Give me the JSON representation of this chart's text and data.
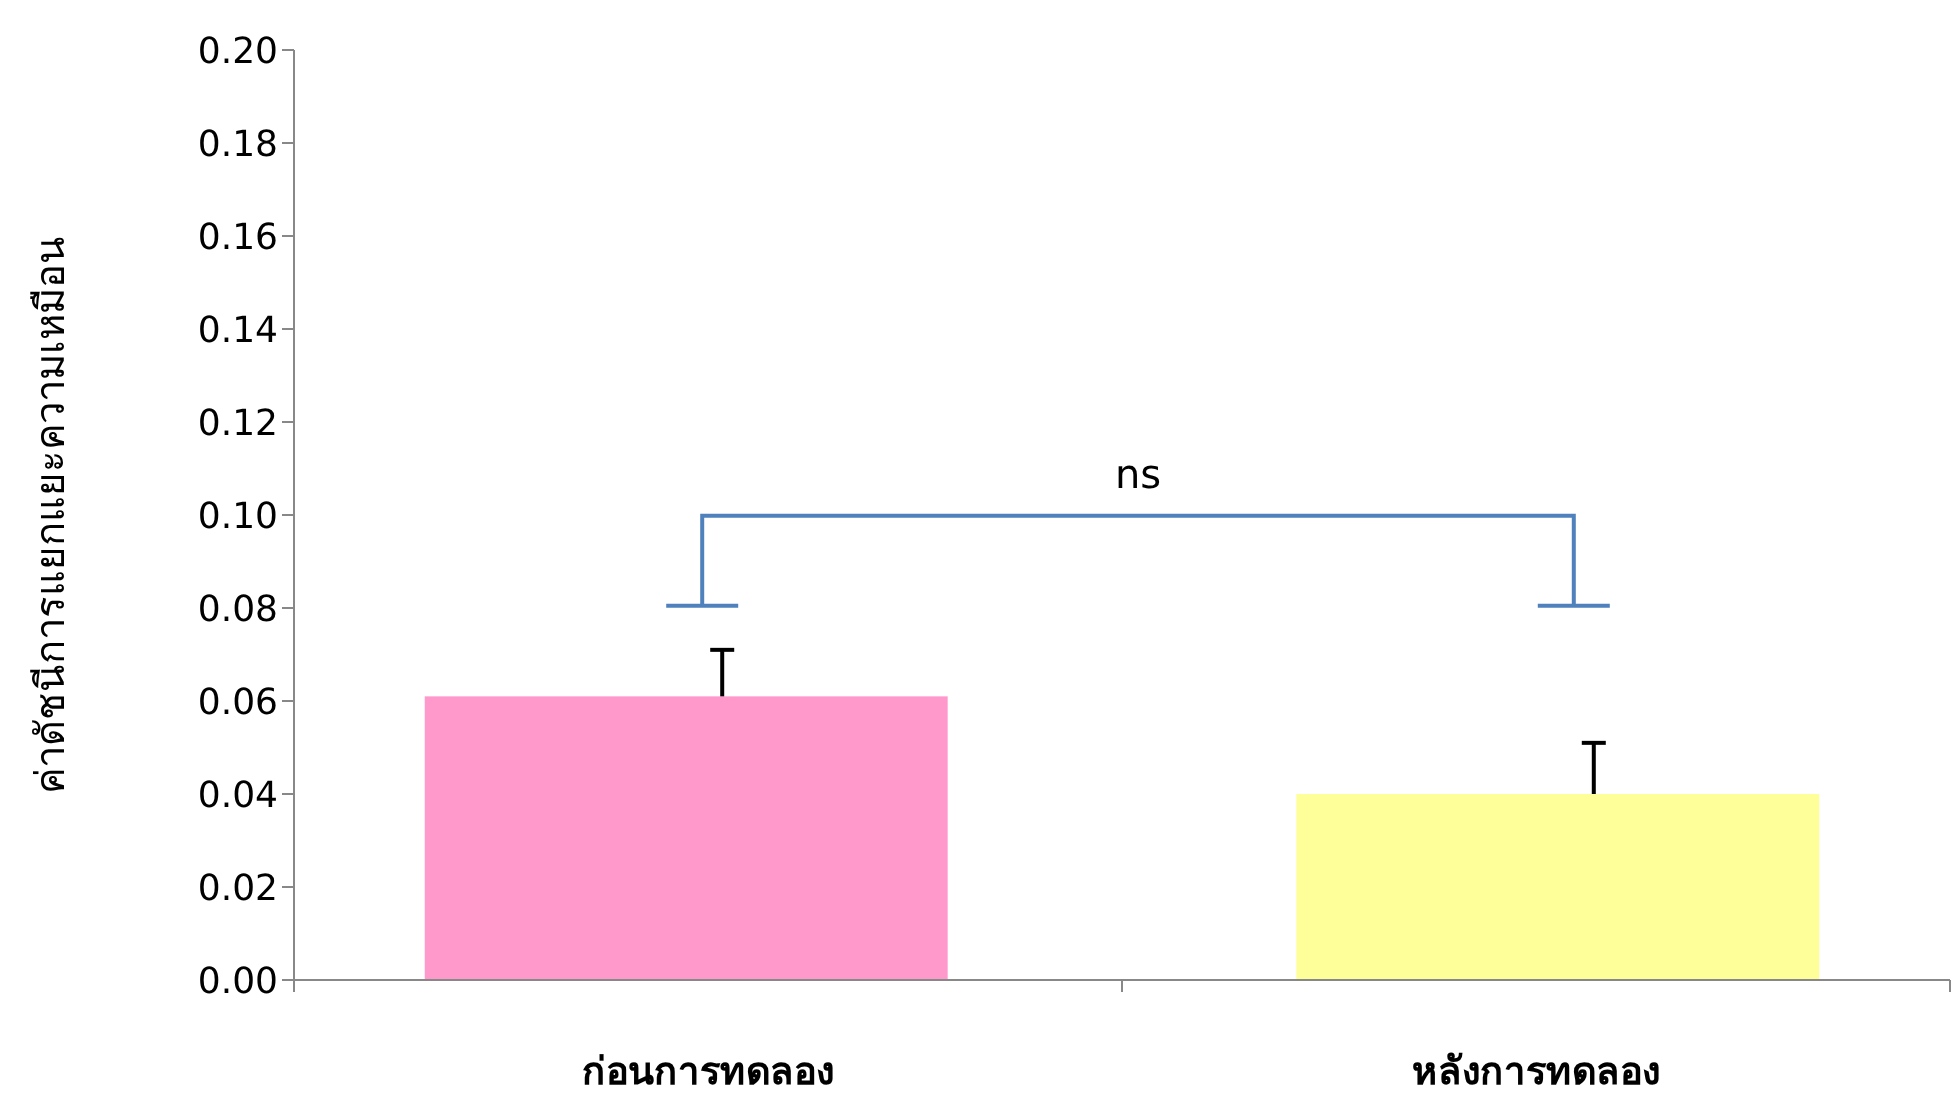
{
  "chart_data": {
    "type": "bar",
    "ylabel": "ค่าดัชนีการแยกแยะความเหมือน",
    "categories": [
      "ก่อนการทดลอง",
      "หลังการทดลอง"
    ],
    "values": [
      0.061,
      0.04
    ],
    "colors": [
      "#ff99cc",
      "#ffff99"
    ],
    "errors": [
      [
        0.061,
        0.071
      ],
      [
        0.04,
        0.051
      ]
    ],
    "ylim": [
      0,
      0.2
    ],
    "yticks": [
      {
        "value": 0,
        "label": "0.00"
      },
      {
        "value": 0.02,
        "label": "0.02"
      },
      {
        "value": 0.04,
        "label": "0.04"
      },
      {
        "value": 0.06,
        "label": "0.06"
      },
      {
        "value": 0.08,
        "label": "0.08"
      },
      {
        "value": 0.1,
        "label": "0.10"
      },
      {
        "value": 0.12,
        "label": "0.12"
      },
      {
        "value": 0.14,
        "label": "0.14"
      },
      {
        "value": 0.16,
        "label": "0.16"
      },
      {
        "value": 0.18,
        "label": "0.18"
      },
      {
        "value": 0.2,
        "label": "0.20"
      }
    ],
    "grid": false,
    "annotations": [
      "ns"
    ]
  }
}
